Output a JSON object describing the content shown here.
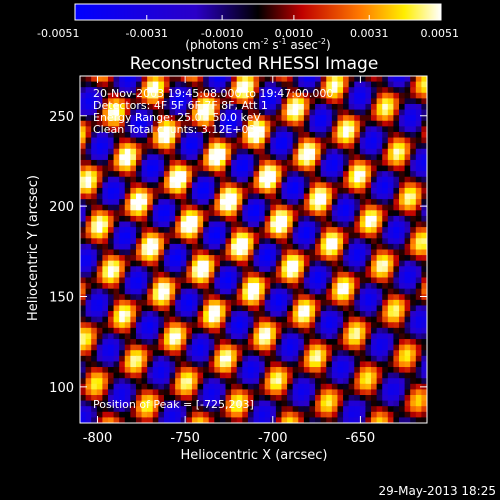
{
  "chart_data": {
    "type": "heatmap",
    "title": "Reconstructed RHESSI Image",
    "xlabel": "Heliocentric X (arcsec)",
    "ylabel": "Heliocentric Y (arcsec)",
    "xlim": [
      -810,
      -612
    ],
    "ylim": [
      80,
      272
    ],
    "x_ticks": [
      "-800",
      "-750",
      "-700",
      "-650"
    ],
    "x_tick_values": [
      -800,
      -750,
      -700,
      -650
    ],
    "y_ticks": [
      "100",
      "150",
      "200",
      "250"
    ],
    "y_tick_values": [
      100,
      150,
      200,
      250
    ],
    "colorbar": {
      "min": -0.0051,
      "max": 0.0051,
      "tick_labels": [
        "-0.0051",
        "-0.0031",
        "-0.0010",
        "0.0010",
        "0.0031",
        "0.0051"
      ],
      "tick_values": [
        -0.0051,
        -0.0031,
        -0.001,
        0.001,
        0.0031,
        0.0051
      ],
      "unit_prefix": "(photons cm",
      "unit_exp1": "-2",
      "unit_mid1": " s",
      "unit_exp2": "-1",
      "unit_mid2": " asec",
      "unit_exp3": "-2",
      "unit_suffix": ")",
      "colors": [
        "#0000ff",
        "#000000",
        "#ff0000",
        "#ffff00",
        "#ffffff"
      ]
    },
    "annotations": {
      "time": "20-Nov-2003 19:45:08.000 to 19:47:00.000",
      "detectors": "Detectors: 4F 5F 6F 7F 8F, Att 1",
      "energy": "Energy Range: 25.0 - 50.0 keV",
      "clean": "Clean     Total counts: 3.12E+03",
      "peak": "Position of Peak = [-725,203]"
    },
    "peak": [
      -725,
      203
    ],
    "footer": "29-May-2013 18:25"
  }
}
